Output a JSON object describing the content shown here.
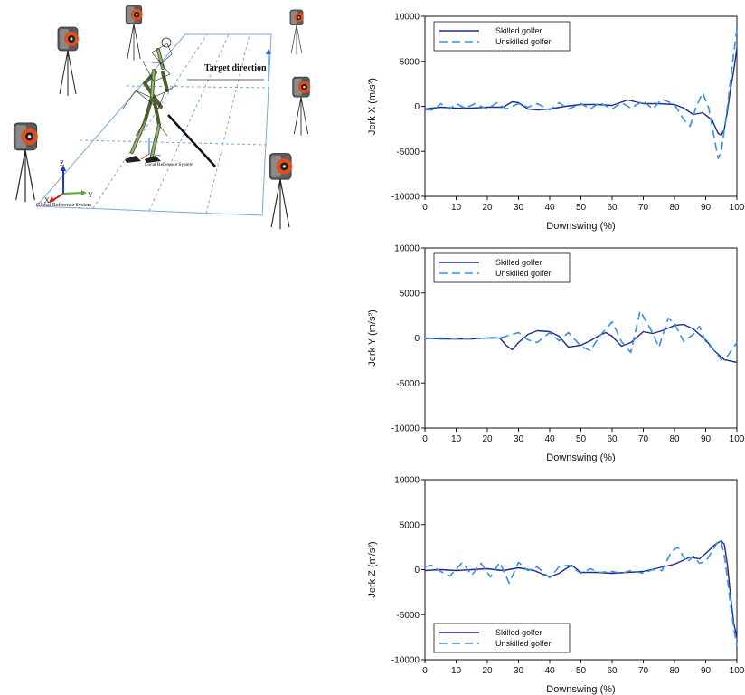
{
  "scene": {
    "target_label": "Target direction",
    "local_label": "Local Reference System",
    "global_label": "Global Reference System",
    "axis_z": "Z",
    "axis_x": "X",
    "axis_y": "Y",
    "colors": {
      "plane": "#7aa7d8",
      "camera_body": "#5a5a5a",
      "camera_lens": "#e0501e"
    }
  },
  "chart_data": [
    {
      "type": "line",
      "xlabel": "Downswing (%)",
      "ylabel": "Jerk X (m/s²)",
      "xlim": [
        0,
        100
      ],
      "ylim": [
        -10000,
        10000
      ],
      "xticks": [
        0,
        10,
        20,
        30,
        40,
        50,
        60,
        70,
        80,
        90,
        100
      ],
      "yticks": [
        -10000,
        -5000,
        0,
        5000,
        10000
      ],
      "legend_position": "top-left",
      "series": [
        {
          "name": "Skilled golfer",
          "color": "#1f2a8a",
          "dash": "solid",
          "x": [
            0,
            5,
            10,
            15,
            20,
            25,
            28,
            30,
            33,
            36,
            40,
            45,
            50,
            55,
            60,
            65,
            70,
            75,
            80,
            83,
            86,
            89,
            92,
            94,
            95,
            96,
            97,
            98,
            99,
            100
          ],
          "y": [
            -300,
            -100,
            -200,
            -200,
            -100,
            -100,
            500,
            400,
            -300,
            -400,
            -300,
            0,
            200,
            200,
            100,
            700,
            300,
            300,
            200,
            -200,
            -900,
            -700,
            -1500,
            -3000,
            -3200,
            -2500,
            -500,
            2000,
            4000,
            6500
          ]
        },
        {
          "name": "Unskilled golfer",
          "color": "#3a8ee6",
          "dash": "dashed",
          "x": [
            0,
            3,
            5,
            8,
            10,
            13,
            16,
            20,
            23,
            26,
            30,
            33,
            36,
            40,
            43,
            46,
            50,
            53,
            56,
            60,
            63,
            66,
            70,
            73,
            76,
            80,
            83,
            85,
            87,
            89,
            91,
            93,
            94,
            95,
            96,
            97,
            98,
            99,
            100
          ],
          "y": [
            -400,
            -400,
            300,
            -300,
            300,
            -200,
            300,
            -300,
            400,
            -300,
            300,
            -100,
            300,
            -400,
            400,
            -300,
            300,
            -300,
            400,
            -300,
            400,
            -200,
            600,
            -300,
            800,
            200,
            -1500,
            -2200,
            0,
            1500,
            -200,
            -4000,
            -5800,
            -5000,
            -2500,
            0,
            3000,
            6000,
            8500
          ]
        }
      ]
    },
    {
      "type": "line",
      "xlabel": "Downswing (%)",
      "ylabel": "Jerk Y (m/s²)",
      "xlim": [
        0,
        100
      ],
      "ylim": [
        -10000,
        10000
      ],
      "xticks": [
        0,
        10,
        20,
        30,
        40,
        50,
        60,
        70,
        80,
        90,
        100
      ],
      "yticks": [
        -10000,
        -5000,
        0,
        5000,
        10000
      ],
      "legend_position": "top-left",
      "series": [
        {
          "name": "Skilled golfer",
          "color": "#1f2a8a",
          "dash": "solid",
          "x": [
            0,
            5,
            10,
            15,
            20,
            24,
            26,
            28,
            30,
            33,
            36,
            40,
            43,
            46,
            50,
            53,
            56,
            58,
            60,
            63,
            66,
            70,
            73,
            76,
            80,
            83,
            86,
            90,
            93,
            96,
            100
          ],
          "y": [
            0,
            -100,
            -100,
            -100,
            0,
            0,
            -800,
            -1300,
            -500,
            400,
            800,
            700,
            200,
            -1000,
            -800,
            -300,
            300,
            600,
            200,
            -900,
            -500,
            700,
            500,
            800,
            1400,
            1500,
            1000,
            -200,
            -1500,
            -2400,
            -2700
          ]
        },
        {
          "name": "Unskilled golfer",
          "color": "#3a8ee6",
          "dash": "dashed",
          "x": [
            0,
            5,
            10,
            15,
            20,
            25,
            30,
            33,
            36,
            40,
            43,
            46,
            50,
            53,
            56,
            60,
            63,
            66,
            69,
            72,
            75,
            78,
            80,
            83,
            86,
            88,
            90,
            93,
            95,
            97,
            100
          ],
          "y": [
            -100,
            0,
            -100,
            -100,
            0,
            100,
            600,
            -200,
            -500,
            600,
            -300,
            600,
            -900,
            -1400,
            200,
            1800,
            -400,
            -1600,
            3000,
            1200,
            -1000,
            2200,
            1600,
            -400,
            400,
            1300,
            -400,
            -1500,
            -2400,
            -2000,
            -500
          ]
        }
      ]
    },
    {
      "type": "line",
      "xlabel": "Downswing (%)",
      "ylabel": "Jerk Z (m/s²)",
      "xlim": [
        0,
        100
      ],
      "ylim": [
        -10000,
        10000
      ],
      "xticks": [
        0,
        10,
        20,
        30,
        40,
        50,
        60,
        70,
        80,
        90,
        100
      ],
      "yticks": [
        -10000,
        -5000,
        0,
        5000,
        10000
      ],
      "legend_position": "bottom-left",
      "series": [
        {
          "name": "Skilled golfer",
          "color": "#1f2a8a",
          "dash": "solid",
          "x": [
            0,
            5,
            10,
            15,
            20,
            25,
            30,
            35,
            40,
            43,
            47,
            50,
            55,
            60,
            65,
            70,
            75,
            80,
            85,
            88,
            90,
            93,
            95,
            96,
            97,
            98,
            99,
            100
          ],
          "y": [
            -100,
            0,
            -100,
            0,
            100,
            -100,
            200,
            -100,
            -800,
            -400,
            500,
            -300,
            -300,
            -400,
            -300,
            -200,
            200,
            600,
            1400,
            1200,
            1800,
            2800,
            3200,
            2800,
            500,
            -3000,
            -6000,
            -7500
          ]
        },
        {
          "name": "Unskilled golfer",
          "color": "#3a8ee6",
          "dash": "dashed",
          "x": [
            0,
            2,
            5,
            8,
            12,
            15,
            18,
            21,
            24,
            27,
            30,
            33,
            36,
            40,
            43,
            46,
            50,
            53,
            56,
            60,
            63,
            66,
            70,
            73,
            76,
            79,
            81,
            84,
            86,
            88,
            90,
            92,
            94,
            95,
            96,
            97,
            98,
            99,
            100
          ],
          "y": [
            300,
            500,
            -200,
            -700,
            800,
            -600,
            700,
            -800,
            800,
            -1500,
            800,
            -100,
            300,
            -900,
            300,
            500,
            -400,
            100,
            -300,
            -200,
            -400,
            -100,
            -400,
            0,
            -100,
            2000,
            2500,
            800,
            1500,
            700,
            900,
            2000,
            3200,
            3000,
            1500,
            -1000,
            -4000,
            -6500,
            -8500
          ]
        }
      ]
    }
  ]
}
